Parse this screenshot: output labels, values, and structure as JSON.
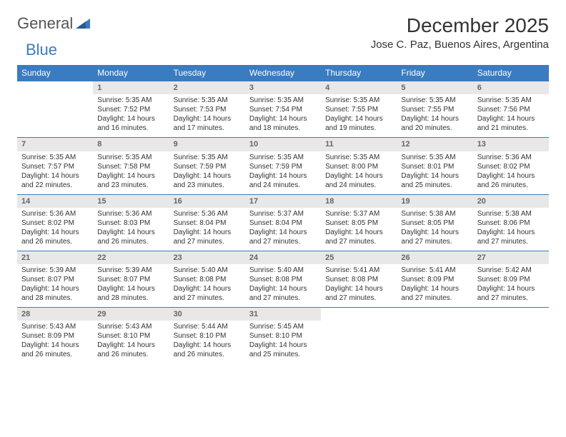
{
  "logo": {
    "general": "General",
    "blue": "Blue"
  },
  "title": "December 2025",
  "location": "Jose C. Paz, Buenos Aires, Argentina",
  "colors": {
    "header_bg": "#3b7bbf",
    "header_text": "#ffffff",
    "daynum_bg": "#e8e8e8",
    "daynum_text": "#666666",
    "body_text": "#333333",
    "row_divider": "#3b7bbf",
    "background": "#ffffff"
  },
  "typography": {
    "month_title_fontsize": 28,
    "location_fontsize": 15,
    "weekday_fontsize": 12,
    "daynum_fontsize": 11,
    "cell_fontsize": 10
  },
  "weekdays": [
    "Sunday",
    "Monday",
    "Tuesday",
    "Wednesday",
    "Thursday",
    "Friday",
    "Saturday"
  ],
  "weeks": [
    [
      {
        "empty": true
      },
      {
        "day": "1",
        "sunrise": "Sunrise: 5:35 AM",
        "sunset": "Sunset: 7:52 PM",
        "daylight1": "Daylight: 14 hours",
        "daylight2": "and 16 minutes."
      },
      {
        "day": "2",
        "sunrise": "Sunrise: 5:35 AM",
        "sunset": "Sunset: 7:53 PM",
        "daylight1": "Daylight: 14 hours",
        "daylight2": "and 17 minutes."
      },
      {
        "day": "3",
        "sunrise": "Sunrise: 5:35 AM",
        "sunset": "Sunset: 7:54 PM",
        "daylight1": "Daylight: 14 hours",
        "daylight2": "and 18 minutes."
      },
      {
        "day": "4",
        "sunrise": "Sunrise: 5:35 AM",
        "sunset": "Sunset: 7:55 PM",
        "daylight1": "Daylight: 14 hours",
        "daylight2": "and 19 minutes."
      },
      {
        "day": "5",
        "sunrise": "Sunrise: 5:35 AM",
        "sunset": "Sunset: 7:55 PM",
        "daylight1": "Daylight: 14 hours",
        "daylight2": "and 20 minutes."
      },
      {
        "day": "6",
        "sunrise": "Sunrise: 5:35 AM",
        "sunset": "Sunset: 7:56 PM",
        "daylight1": "Daylight: 14 hours",
        "daylight2": "and 21 minutes."
      }
    ],
    [
      {
        "day": "7",
        "sunrise": "Sunrise: 5:35 AM",
        "sunset": "Sunset: 7:57 PM",
        "daylight1": "Daylight: 14 hours",
        "daylight2": "and 22 minutes."
      },
      {
        "day": "8",
        "sunrise": "Sunrise: 5:35 AM",
        "sunset": "Sunset: 7:58 PM",
        "daylight1": "Daylight: 14 hours",
        "daylight2": "and 23 minutes."
      },
      {
        "day": "9",
        "sunrise": "Sunrise: 5:35 AM",
        "sunset": "Sunset: 7:59 PM",
        "daylight1": "Daylight: 14 hours",
        "daylight2": "and 23 minutes."
      },
      {
        "day": "10",
        "sunrise": "Sunrise: 5:35 AM",
        "sunset": "Sunset: 7:59 PM",
        "daylight1": "Daylight: 14 hours",
        "daylight2": "and 24 minutes."
      },
      {
        "day": "11",
        "sunrise": "Sunrise: 5:35 AM",
        "sunset": "Sunset: 8:00 PM",
        "daylight1": "Daylight: 14 hours",
        "daylight2": "and 24 minutes."
      },
      {
        "day": "12",
        "sunrise": "Sunrise: 5:35 AM",
        "sunset": "Sunset: 8:01 PM",
        "daylight1": "Daylight: 14 hours",
        "daylight2": "and 25 minutes."
      },
      {
        "day": "13",
        "sunrise": "Sunrise: 5:36 AM",
        "sunset": "Sunset: 8:02 PM",
        "daylight1": "Daylight: 14 hours",
        "daylight2": "and 26 minutes."
      }
    ],
    [
      {
        "day": "14",
        "sunrise": "Sunrise: 5:36 AM",
        "sunset": "Sunset: 8:02 PM",
        "daylight1": "Daylight: 14 hours",
        "daylight2": "and 26 minutes."
      },
      {
        "day": "15",
        "sunrise": "Sunrise: 5:36 AM",
        "sunset": "Sunset: 8:03 PM",
        "daylight1": "Daylight: 14 hours",
        "daylight2": "and 26 minutes."
      },
      {
        "day": "16",
        "sunrise": "Sunrise: 5:36 AM",
        "sunset": "Sunset: 8:04 PM",
        "daylight1": "Daylight: 14 hours",
        "daylight2": "and 27 minutes."
      },
      {
        "day": "17",
        "sunrise": "Sunrise: 5:37 AM",
        "sunset": "Sunset: 8:04 PM",
        "daylight1": "Daylight: 14 hours",
        "daylight2": "and 27 minutes."
      },
      {
        "day": "18",
        "sunrise": "Sunrise: 5:37 AM",
        "sunset": "Sunset: 8:05 PM",
        "daylight1": "Daylight: 14 hours",
        "daylight2": "and 27 minutes."
      },
      {
        "day": "19",
        "sunrise": "Sunrise: 5:38 AM",
        "sunset": "Sunset: 8:05 PM",
        "daylight1": "Daylight: 14 hours",
        "daylight2": "and 27 minutes."
      },
      {
        "day": "20",
        "sunrise": "Sunrise: 5:38 AM",
        "sunset": "Sunset: 8:06 PM",
        "daylight1": "Daylight: 14 hours",
        "daylight2": "and 27 minutes."
      }
    ],
    [
      {
        "day": "21",
        "sunrise": "Sunrise: 5:39 AM",
        "sunset": "Sunset: 8:07 PM",
        "daylight1": "Daylight: 14 hours",
        "daylight2": "and 28 minutes."
      },
      {
        "day": "22",
        "sunrise": "Sunrise: 5:39 AM",
        "sunset": "Sunset: 8:07 PM",
        "daylight1": "Daylight: 14 hours",
        "daylight2": "and 28 minutes."
      },
      {
        "day": "23",
        "sunrise": "Sunrise: 5:40 AM",
        "sunset": "Sunset: 8:08 PM",
        "daylight1": "Daylight: 14 hours",
        "daylight2": "and 27 minutes."
      },
      {
        "day": "24",
        "sunrise": "Sunrise: 5:40 AM",
        "sunset": "Sunset: 8:08 PM",
        "daylight1": "Daylight: 14 hours",
        "daylight2": "and 27 minutes."
      },
      {
        "day": "25",
        "sunrise": "Sunrise: 5:41 AM",
        "sunset": "Sunset: 8:08 PM",
        "daylight1": "Daylight: 14 hours",
        "daylight2": "and 27 minutes."
      },
      {
        "day": "26",
        "sunrise": "Sunrise: 5:41 AM",
        "sunset": "Sunset: 8:09 PM",
        "daylight1": "Daylight: 14 hours",
        "daylight2": "and 27 minutes."
      },
      {
        "day": "27",
        "sunrise": "Sunrise: 5:42 AM",
        "sunset": "Sunset: 8:09 PM",
        "daylight1": "Daylight: 14 hours",
        "daylight2": "and 27 minutes."
      }
    ],
    [
      {
        "day": "28",
        "sunrise": "Sunrise: 5:43 AM",
        "sunset": "Sunset: 8:09 PM",
        "daylight1": "Daylight: 14 hours",
        "daylight2": "and 26 minutes."
      },
      {
        "day": "29",
        "sunrise": "Sunrise: 5:43 AM",
        "sunset": "Sunset: 8:10 PM",
        "daylight1": "Daylight: 14 hours",
        "daylight2": "and 26 minutes."
      },
      {
        "day": "30",
        "sunrise": "Sunrise: 5:44 AM",
        "sunset": "Sunset: 8:10 PM",
        "daylight1": "Daylight: 14 hours",
        "daylight2": "and 26 minutes."
      },
      {
        "day": "31",
        "sunrise": "Sunrise: 5:45 AM",
        "sunset": "Sunset: 8:10 PM",
        "daylight1": "Daylight: 14 hours",
        "daylight2": "and 25 minutes."
      },
      {
        "empty": true
      },
      {
        "empty": true
      },
      {
        "empty": true
      }
    ]
  ]
}
